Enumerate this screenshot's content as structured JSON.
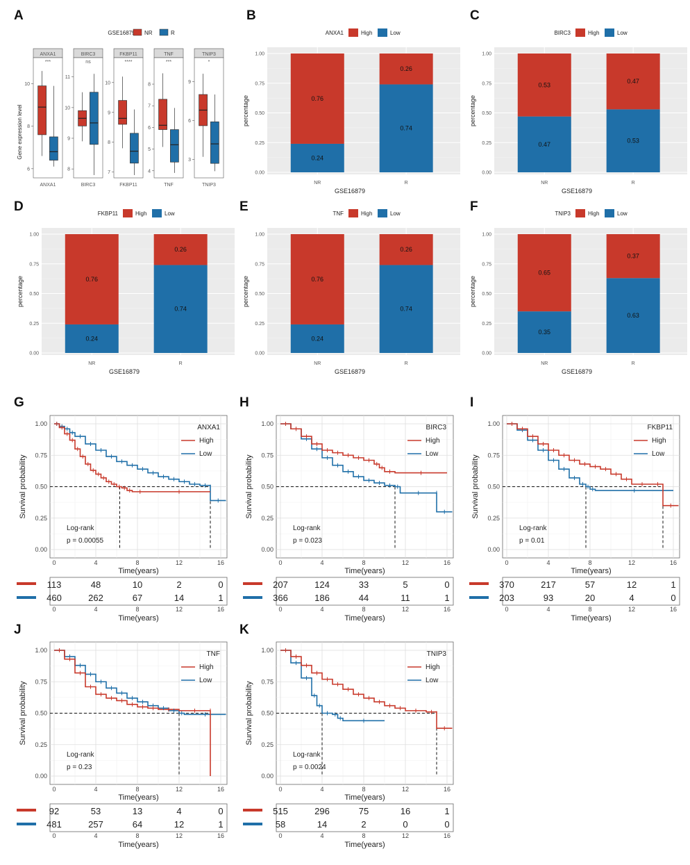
{
  "colors": {
    "high": "#C8392B",
    "low": "#1F6FA8",
    "panel_bg": "#EBEBEB",
    "grid": "#FFFFFF"
  },
  "panel_labels": [
    "A",
    "B",
    "C",
    "D",
    "E",
    "F",
    "G",
    "H",
    "I",
    "J",
    "K"
  ],
  "boxplot": {
    "panel": "A",
    "dataset": "GSE16879",
    "legend": [
      {
        "key": "NR",
        "color": "#C8392B"
      },
      {
        "key": "R",
        "color": "#1F6FA8"
      }
    ],
    "ylabel": "Gene expression level",
    "genes": [
      {
        "name": "ANXA1",
        "sig": "***",
        "ymin": 5.7,
        "ymax": 10.9,
        "ticks": [
          6,
          8,
          10
        ],
        "NR": {
          "lo": 6.6,
          "q1": 7.6,
          "med": 8.9,
          "q3": 9.9,
          "hi": 10.6
        },
        "R": {
          "lo": 6.1,
          "q1": 6.4,
          "med": 6.8,
          "q3": 7.5,
          "hi": 9.9
        }
      },
      {
        "name": "BIRC3",
        "sig": "ns",
        "ymin": 7.8,
        "ymax": 11.4,
        "ticks": [
          8,
          9,
          10,
          11
        ],
        "NR": {
          "lo": 8.9,
          "q1": 9.4,
          "med": 9.65,
          "q3": 9.9,
          "hi": 10.5
        },
        "R": {
          "lo": 7.8,
          "q1": 8.8,
          "med": 9.5,
          "q3": 10.5,
          "hi": 11.1
        }
      },
      {
        "name": "FKBP11",
        "sig": "****",
        "ymin": 6.9,
        "ymax": 10.6,
        "ticks": [
          7,
          8,
          9,
          10
        ],
        "NR": {
          "lo": 7.8,
          "q1": 8.6,
          "med": 8.8,
          "q3": 9.4,
          "hi": 10.2
        },
        "R": {
          "lo": 6.9,
          "q1": 7.3,
          "med": 7.7,
          "q3": 8.3,
          "hi": 9.1
        }
      },
      {
        "name": "TNF",
        "sig": "***",
        "ymin": 3.8,
        "ymax": 8.9,
        "ticks": [
          4,
          5,
          6,
          7,
          8
        ],
        "NR": {
          "lo": 5.1,
          "q1": 5.9,
          "med": 6.1,
          "q3": 7.3,
          "hi": 8.5
        },
        "R": {
          "lo": 3.9,
          "q1": 4.4,
          "med": 5.2,
          "q3": 5.9,
          "hi": 6.9
        }
      },
      {
        "name": "TNIP3",
        "sig": "*",
        "ymin": 1.8,
        "ymax": 10.3,
        "ticks": [
          3,
          6,
          9
        ],
        "NR": {
          "lo": 3.2,
          "q1": 5.6,
          "med": 6.8,
          "q3": 8.0,
          "hi": 9.6
        },
        "R": {
          "lo": 2.1,
          "q1": 2.7,
          "med": 4.2,
          "q3": 5.9,
          "hi": 8.0
        }
      }
    ]
  },
  "stacked_bar": {
    "xlabel": "GSE16879",
    "ylabel": "percentage",
    "categories": [
      "NR",
      "R"
    ],
    "yticks": [
      "0.00",
      "0.25",
      "0.50",
      "0.75",
      "1.00"
    ],
    "legend": [
      "High",
      "Low"
    ]
  },
  "chart_data": [
    {
      "panel": "B",
      "type": "bar",
      "stacked": true,
      "title": "ANXA1",
      "categories": [
        "NR",
        "R"
      ],
      "series": [
        {
          "name": "High",
          "values": [
            0.76,
            0.26
          ],
          "labels": [
            "0.76",
            "0.26"
          ]
        },
        {
          "name": "Low",
          "values": [
            0.24,
            0.74
          ],
          "labels": [
            "0.24",
            "0.74"
          ]
        }
      ],
      "xlabel": "GSE16879",
      "ylabel": "percentage",
      "ylim": [
        0,
        1
      ]
    },
    {
      "panel": "C",
      "type": "bar",
      "stacked": true,
      "title": "BIRC3",
      "categories": [
        "NR",
        "R"
      ],
      "series": [
        {
          "name": "High",
          "values": [
            0.53,
            0.47
          ],
          "labels": [
            "0.53",
            "0.47"
          ]
        },
        {
          "name": "Low",
          "values": [
            0.47,
            0.53
          ],
          "labels": [
            "0.47",
            "0.53"
          ]
        }
      ],
      "xlabel": "GSE16879",
      "ylabel": "percentage",
      "ylim": [
        0,
        1
      ]
    },
    {
      "panel": "D",
      "type": "bar",
      "stacked": true,
      "title": "FKBP11",
      "categories": [
        "NR",
        "R"
      ],
      "series": [
        {
          "name": "High",
          "values": [
            0.76,
            0.26
          ],
          "labels": [
            "0.76",
            "0.26"
          ]
        },
        {
          "name": "Low",
          "values": [
            0.24,
            0.74
          ],
          "labels": [
            "0.24",
            "0.74"
          ]
        }
      ],
      "xlabel": "GSE16879",
      "ylabel": "percentage",
      "ylim": [
        0,
        1
      ]
    },
    {
      "panel": "E",
      "type": "bar",
      "stacked": true,
      "title": "TNF",
      "categories": [
        "NR",
        "R"
      ],
      "series": [
        {
          "name": "High",
          "values": [
            0.76,
            0.26
          ],
          "labels": [
            "0.76",
            "0.26"
          ]
        },
        {
          "name": "Low",
          "values": [
            0.24,
            0.74
          ],
          "labels": [
            "0.24",
            "0.74"
          ]
        }
      ],
      "xlabel": "GSE16879",
      "ylabel": "percentage",
      "ylim": [
        0,
        1
      ]
    },
    {
      "panel": "F",
      "type": "bar",
      "stacked": true,
      "title": "TNIP3",
      "categories": [
        "NR",
        "R"
      ],
      "series": [
        {
          "name": "High",
          "values": [
            0.65,
            0.37
          ],
          "labels": [
            "0.65",
            "0.37"
          ]
        },
        {
          "name": "Low",
          "values": [
            0.35,
            0.63
          ],
          "labels": [
            "0.35",
            "0.63"
          ]
        }
      ],
      "xlabel": "GSE16879",
      "ylabel": "percentage",
      "ylim": [
        0,
        1
      ]
    }
  ],
  "km_common": {
    "ylabel": "Survival probability",
    "xlabel": "Time(years)",
    "xticks": [
      0,
      4,
      8,
      12,
      16
    ],
    "yticks": [
      "0.00",
      "0.25",
      "0.50",
      "0.75",
      "1.00"
    ],
    "logrank_label": "Log-rank",
    "legend": [
      "High",
      "Low"
    ]
  },
  "km_plots": [
    {
      "panel": "G",
      "gene": "ANXA1",
      "p": "p = 0.00055",
      "high": [
        [
          0,
          1
        ],
        [
          0.5,
          0.97
        ],
        [
          1,
          0.92
        ],
        [
          1.5,
          0.87
        ],
        [
          2,
          0.8
        ],
        [
          2.5,
          0.74
        ],
        [
          3,
          0.68
        ],
        [
          3.5,
          0.63
        ],
        [
          4,
          0.6
        ],
        [
          4.5,
          0.57
        ],
        [
          5,
          0.54
        ],
        [
          5.5,
          0.52
        ],
        [
          6,
          0.5
        ],
        [
          6.5,
          0.49
        ],
        [
          7,
          0.47
        ],
        [
          7.5,
          0.46
        ],
        [
          9,
          0.46
        ],
        [
          15,
          0.46
        ]
      ],
      "low": [
        [
          0,
          1
        ],
        [
          0.5,
          0.98
        ],
        [
          1,
          0.96
        ],
        [
          1.5,
          0.93
        ],
        [
          2,
          0.9
        ],
        [
          3,
          0.84
        ],
        [
          4,
          0.79
        ],
        [
          5,
          0.74
        ],
        [
          6,
          0.7
        ],
        [
          7,
          0.67
        ],
        [
          8,
          0.64
        ],
        [
          9,
          0.61
        ],
        [
          10,
          0.58
        ],
        [
          11,
          0.56
        ],
        [
          12,
          0.54
        ],
        [
          13,
          0.52
        ],
        [
          14,
          0.51
        ],
        [
          15,
          0.5
        ],
        [
          15,
          0.39
        ],
        [
          16.5,
          0.39
        ]
      ],
      "median_high": 6.3,
      "median_low": 15.0,
      "risk_high": [
        "113",
        "48",
        "10",
        "2",
        "0"
      ],
      "risk_low": [
        "460",
        "262",
        "67",
        "14",
        "1"
      ]
    },
    {
      "panel": "H",
      "gene": "BIRC3",
      "p": "p = 0.023",
      "high": [
        [
          0,
          1
        ],
        [
          1,
          0.96
        ],
        [
          2,
          0.9
        ],
        [
          3,
          0.84
        ],
        [
          4,
          0.79
        ],
        [
          5,
          0.77
        ],
        [
          6,
          0.75
        ],
        [
          7,
          0.73
        ],
        [
          8,
          0.71
        ],
        [
          9,
          0.68
        ],
        [
          9.5,
          0.65
        ],
        [
          10,
          0.62
        ],
        [
          11,
          0.61
        ],
        [
          16,
          0.61
        ]
      ],
      "low": [
        [
          0,
          1
        ],
        [
          1,
          0.96
        ],
        [
          2,
          0.88
        ],
        [
          3,
          0.8
        ],
        [
          4,
          0.73
        ],
        [
          5,
          0.67
        ],
        [
          6,
          0.62
        ],
        [
          7,
          0.58
        ],
        [
          8,
          0.55
        ],
        [
          9,
          0.53
        ],
        [
          10,
          0.51
        ],
        [
          11,
          0.5
        ],
        [
          11.5,
          0.45
        ],
        [
          15,
          0.45
        ],
        [
          15,
          0.3
        ],
        [
          16.5,
          0.3
        ]
      ],
      "median_high": null,
      "median_low": 11.0,
      "risk_high": [
        "207",
        "124",
        "33",
        "5",
        "0"
      ],
      "risk_low": [
        "366",
        "186",
        "44",
        "11",
        "1"
      ]
    },
    {
      "panel": "I",
      "gene": "FKBP11",
      "p": "p = 0.01",
      "high": [
        [
          0,
          1
        ],
        [
          1,
          0.96
        ],
        [
          2,
          0.9
        ],
        [
          3,
          0.84
        ],
        [
          4,
          0.79
        ],
        [
          5,
          0.75
        ],
        [
          6,
          0.71
        ],
        [
          7,
          0.68
        ],
        [
          8,
          0.66
        ],
        [
          9,
          0.64
        ],
        [
          10,
          0.6
        ],
        [
          11,
          0.56
        ],
        [
          12,
          0.52
        ],
        [
          14,
          0.52
        ],
        [
          15,
          0.5
        ],
        [
          15,
          0.35
        ],
        [
          16.5,
          0.35
        ]
      ],
      "low": [
        [
          0,
          1
        ],
        [
          1,
          0.95
        ],
        [
          2,
          0.87
        ],
        [
          3,
          0.79
        ],
        [
          4,
          0.71
        ],
        [
          5,
          0.64
        ],
        [
          6,
          0.57
        ],
        [
          7,
          0.52
        ],
        [
          7.6,
          0.5
        ],
        [
          8,
          0.48
        ],
        [
          8.5,
          0.47
        ],
        [
          16,
          0.47
        ]
      ],
      "median_high": 15.0,
      "median_low": 7.6,
      "risk_high": [
        "370",
        "217",
        "57",
        "12",
        "1"
      ],
      "risk_low": [
        "203",
        "93",
        "20",
        "4",
        "0"
      ]
    },
    {
      "panel": "J",
      "gene": "TNF",
      "p": "p = 0.23",
      "high": [
        [
          0,
          1
        ],
        [
          1,
          0.93
        ],
        [
          2,
          0.82
        ],
        [
          3,
          0.71
        ],
        [
          4,
          0.65
        ],
        [
          5,
          0.62
        ],
        [
          6,
          0.6
        ],
        [
          7,
          0.57
        ],
        [
          8,
          0.55
        ],
        [
          9,
          0.54
        ],
        [
          10,
          0.53
        ],
        [
          12,
          0.52
        ],
        [
          15,
          0.52
        ],
        [
          15,
          0.0
        ]
      ],
      "low": [
        [
          0,
          1
        ],
        [
          1,
          0.95
        ],
        [
          2,
          0.88
        ],
        [
          3,
          0.81
        ],
        [
          4,
          0.75
        ],
        [
          5,
          0.7
        ],
        [
          6,
          0.66
        ],
        [
          7,
          0.62
        ],
        [
          8,
          0.59
        ],
        [
          9,
          0.56
        ],
        [
          10,
          0.54
        ],
        [
          11,
          0.52
        ],
        [
          12,
          0.5
        ],
        [
          12.5,
          0.49
        ],
        [
          16.5,
          0.49
        ]
      ],
      "median_high": 15.0,
      "median_low": 12.0,
      "risk_high": [
        "92",
        "53",
        "13",
        "4",
        "0"
      ],
      "risk_low": [
        "481",
        "257",
        "64",
        "12",
        "1"
      ]
    },
    {
      "panel": "K",
      "gene": "TNIP3",
      "p": "p = 0.0024",
      "high": [
        [
          0,
          1
        ],
        [
          1,
          0.95
        ],
        [
          2,
          0.88
        ],
        [
          3,
          0.82
        ],
        [
          4,
          0.77
        ],
        [
          5,
          0.73
        ],
        [
          6,
          0.69
        ],
        [
          7,
          0.65
        ],
        [
          8,
          0.62
        ],
        [
          9,
          0.59
        ],
        [
          10,
          0.56
        ],
        [
          11,
          0.54
        ],
        [
          12,
          0.52
        ],
        [
          14,
          0.51
        ],
        [
          15,
          0.5
        ],
        [
          15,
          0.38
        ],
        [
          16.5,
          0.38
        ]
      ],
      "low": [
        [
          0,
          1
        ],
        [
          1,
          0.9
        ],
        [
          2,
          0.78
        ],
        [
          3,
          0.64
        ],
        [
          3.5,
          0.56
        ],
        [
          4,
          0.5
        ],
        [
          5,
          0.49
        ],
        [
          5.5,
          0.46
        ],
        [
          6,
          0.44
        ],
        [
          10,
          0.44
        ]
      ],
      "median_high": 15.0,
      "median_low": 4.0,
      "risk_high": [
        "515",
        "296",
        "75",
        "16",
        "1"
      ],
      "risk_low": [
        "58",
        "14",
        "2",
        "0",
        "0"
      ]
    }
  ]
}
